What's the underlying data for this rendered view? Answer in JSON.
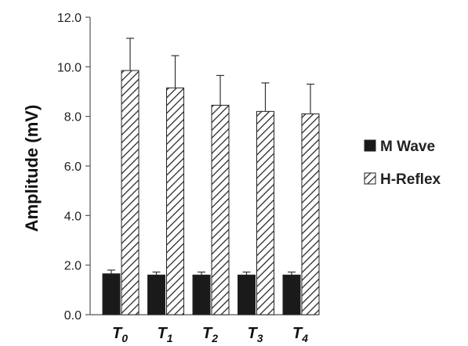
{
  "chart_data": {
    "type": "bar",
    "title": "",
    "xlabel": "",
    "ylabel": "Amplitude (mV)",
    "ylim": [
      0,
      12
    ],
    "yticks": [
      "0.0",
      "2.0",
      "4.0",
      "6.0",
      "8.0",
      "10.0",
      "12.0"
    ],
    "categories": [
      {
        "base": "T",
        "sub": "0"
      },
      {
        "base": "T",
        "sub": "1"
      },
      {
        "base": "T",
        "sub": "2"
      },
      {
        "base": "T",
        "sub": "3"
      },
      {
        "base": "T",
        "sub": "4"
      }
    ],
    "series": [
      {
        "name": "M Wave",
        "fill": "solid",
        "color": "#1a1a1a",
        "values": [
          1.65,
          1.6,
          1.6,
          1.6,
          1.6
        ],
        "errors": [
          0.15,
          0.12,
          0.12,
          0.12,
          0.12
        ]
      },
      {
        "name": "H-Reflex",
        "fill": "hatched",
        "color": "#333333",
        "values": [
          9.85,
          9.15,
          8.45,
          8.2,
          8.1
        ],
        "errors": [
          1.3,
          1.3,
          1.2,
          1.15,
          1.2
        ]
      }
    ],
    "grid": false,
    "legend": "right"
  }
}
